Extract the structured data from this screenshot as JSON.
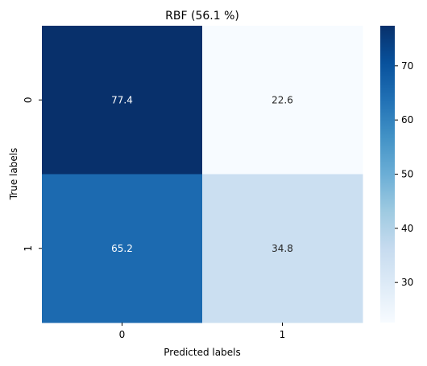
{
  "chart_data": {
    "type": "heatmap",
    "title": "RBF (56.1 %)",
    "xlabel": "Predicted labels",
    "ylabel": "True labels",
    "x_categories": [
      "0",
      "1"
    ],
    "y_categories": [
      "0",
      "1"
    ],
    "values": [
      [
        77.4,
        22.6
      ],
      [
        65.2,
        34.8
      ]
    ],
    "cell_labels": [
      [
        "77.4",
        "22.6"
      ],
      [
        "65.2",
        "34.8"
      ]
    ],
    "colormap": "Blues",
    "colorbar": {
      "range": [
        22.6,
        77.4
      ],
      "ticks": [
        30,
        40,
        50,
        60,
        70
      ],
      "tick_labels": [
        "30",
        "40",
        "50",
        "60",
        "70"
      ]
    },
    "colors": {
      "low": "#f7fbff",
      "high": "#08306b",
      "label_on_dark": "#ffffff",
      "label_on_light": "#262626"
    }
  }
}
